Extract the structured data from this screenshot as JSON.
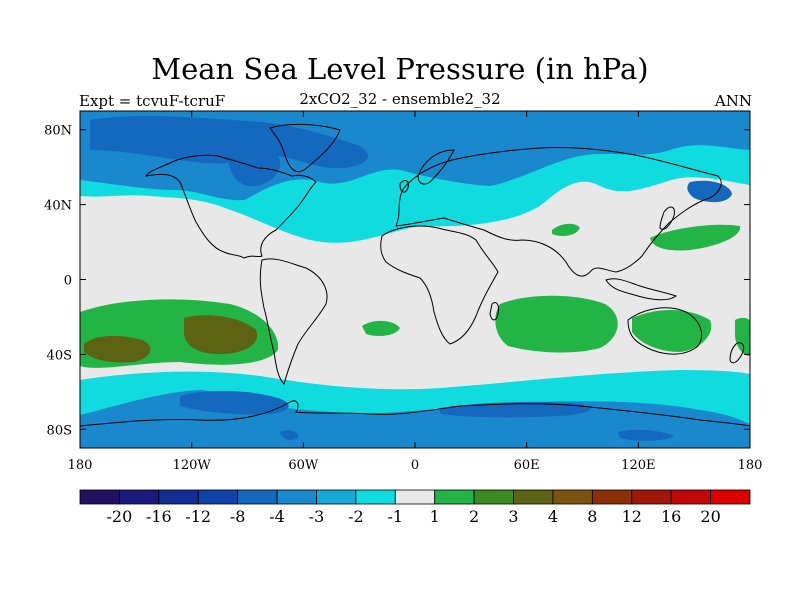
{
  "header": {
    "title": "Mean Sea Level Pressure (in hPa)",
    "left": "Expt = tcvuF-tcruF",
    "center": "2xCO2_32 - ensemble2_32",
    "right": "ANN"
  },
  "axes": {
    "lat_labels": [
      "80N",
      "40N",
      "0",
      "40S",
      "80S"
    ],
    "lat_values": [
      80,
      40,
      0,
      -40,
      -80
    ],
    "lon_labels": [
      "180",
      "120W",
      "60W",
      "0",
      "60E",
      "120E",
      "180"
    ],
    "lon_values": [
      -180,
      -120,
      -60,
      0,
      60,
      120,
      180
    ],
    "lat_range": [
      -90,
      90
    ],
    "lon_range": [
      -180,
      180
    ]
  },
  "colorbar": {
    "labels": [
      "-20",
      "-16",
      "-12",
      "-8",
      "-4",
      "-3",
      "-2",
      "-1",
      "1",
      "2",
      "3",
      "4",
      "8",
      "12",
      "16",
      "20"
    ],
    "colors": [
      "#221060",
      "#1a1a7e",
      "#142c96",
      "#1044a8",
      "#1468bd",
      "#1a88cc",
      "#18a8d6",
      "#10dce0",
      "#e8e8e8",
      "#22b444",
      "#3c8c24",
      "#5c6414",
      "#7c5210",
      "#8c3008",
      "#a01808",
      "#c00808",
      "#dc0000"
    ]
  },
  "colors": {
    "land_outline": "#000000",
    "neutral": "#e8e8e8",
    "cyan": "#10dce0",
    "blue_mid": "#1a88cc",
    "blue_dark": "#1468bd",
    "green": "#22b444",
    "olive": "#5c6414"
  }
}
